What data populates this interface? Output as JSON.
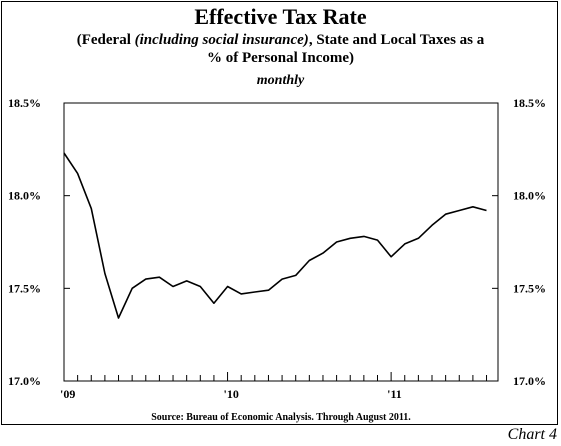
{
  "titles": {
    "line1": "Effective Tax Rate",
    "line2_before": "(Federal ",
    "line2_italic": "(including social insurance)",
    "line2_after": ", State and Local Taxes as a",
    "line3": "% of Personal Income)",
    "line4": "monthly"
  },
  "source": "Source: Bureau of Economic Analysis. Through August 2011.",
  "footer_label": "Chart 4",
  "chart_data": {
    "type": "line",
    "title": "Effective Tax Rate",
    "subtitle": "(Federal (including social insurance), State and Local Taxes as a % of Personal Income) monthly",
    "xlabel": "",
    "ylabel": "",
    "x": [
      "2009-01",
      "2009-02",
      "2009-03",
      "2009-04",
      "2009-05",
      "2009-06",
      "2009-07",
      "2009-08",
      "2009-09",
      "2009-10",
      "2009-11",
      "2009-12",
      "2010-01",
      "2010-02",
      "2010-03",
      "2010-04",
      "2010-05",
      "2010-06",
      "2010-07",
      "2010-08",
      "2010-09",
      "2010-10",
      "2010-11",
      "2010-12",
      "2011-01",
      "2011-02",
      "2011-03",
      "2011-04",
      "2011-05",
      "2011-06",
      "2011-07",
      "2011-08"
    ],
    "series": [
      {
        "values": [
          18.23,
          18.12,
          17.93,
          17.58,
          17.34,
          17.5,
          17.55,
          17.56,
          17.51,
          17.54,
          17.51,
          17.42,
          17.51,
          17.47,
          17.48,
          17.49,
          17.55,
          17.57,
          17.65,
          17.69,
          17.75,
          17.77,
          17.78,
          17.76,
          17.67,
          17.74,
          17.77,
          17.84,
          17.9,
          17.92,
          17.94,
          17.92
        ]
      }
    ],
    "ylim": [
      17.0,
      18.5
    ],
    "y_ticks": [
      17.0,
      17.5,
      18.0,
      18.5
    ],
    "y_tick_labels": [
      "17.0%",
      "17.5%",
      "18.0%",
      "18.5%"
    ],
    "x_tick_labels": [
      {
        "at": "2009-01",
        "label": "'09"
      },
      {
        "at": "2010-01",
        "label": "'10"
      },
      {
        "at": "2011-01",
        "label": "'11"
      }
    ],
    "grid": false,
    "legend": "none",
    "line_color": "#000000"
  }
}
